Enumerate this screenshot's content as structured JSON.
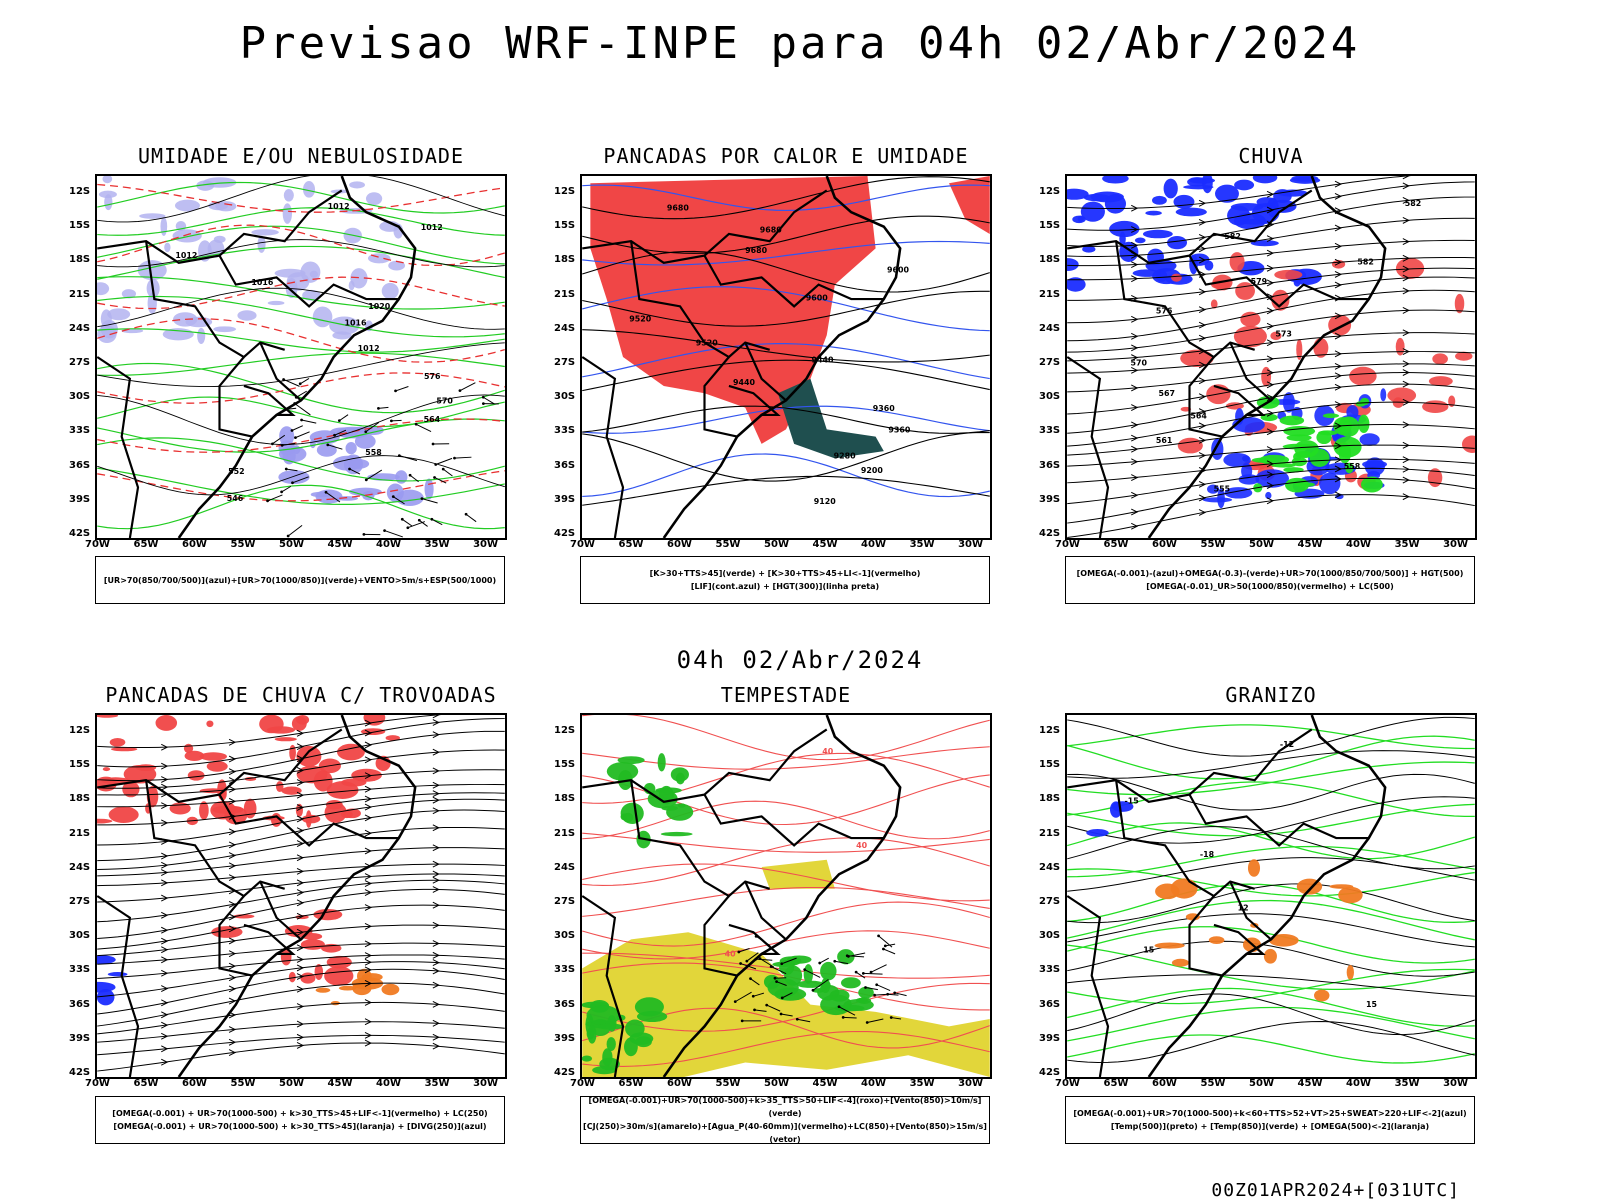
{
  "header": {
    "title": "Previsao WRF-INPE  para 04h 02/Abr/2024",
    "mid_date": "04h 02/Abr/2024",
    "footer": "00Z01APR2024+[031UTC]"
  },
  "axes": {
    "lat_labels": [
      "12S",
      "15S",
      "18S",
      "21S",
      "24S",
      "27S",
      "30S",
      "33S",
      "36S",
      "39S",
      "42S"
    ],
    "lon_labels": [
      "70W",
      "65W",
      "60W",
      "55W",
      "50W",
      "45W",
      "40W",
      "35W",
      "30W"
    ]
  },
  "panels": [
    {
      "title": "UMIDADE E/OU NEBULOSIDADE",
      "legend": [
        "[UR>70(850/700/500)](azul)+[UR>70(1000/850)](verde)+VENTO>5m/s+ESP(500/1000)"
      ],
      "contour_labels": [
        "1012",
        "1012",
        "1012",
        "1016",
        "1020",
        "1016",
        "1012",
        "576",
        "570",
        "564",
        "558",
        "552",
        "546"
      ]
    },
    {
      "title": "PANCADAS POR CALOR E UMIDADE",
      "legend": [
        "[K>30+TTS>45](verde) + [K>30+TTS>45+LI<-1](vermelho)",
        "[LIF](cont.azul) + [HGT(300)](linha preta)"
      ],
      "contour_labels": [
        "9680",
        "9680",
        "9680",
        "9600",
        "9600",
        "9520",
        "9520",
        "9440",
        "9440",
        "9360",
        "9360",
        "9280",
        "9200",
        "9120"
      ]
    },
    {
      "title": "CHUVA",
      "legend": [
        "[OMEGA(-0.001)-(azul)+OMEGA(-0.3)-(verde)+UR>70(1000/850/700/500)] + HGT(500)",
        "[OMEGA(-0.01)_UR>50(1000/850)(vermelho) + LC(500)"
      ],
      "contour_labels": [
        "582",
        "582",
        "582",
        "579",
        "576",
        "573",
        "570",
        "567",
        "564",
        "561",
        "558",
        "555"
      ]
    },
    {
      "title": "PANCADAS DE CHUVA C/ TROVOADAS",
      "legend": [
        "[OMEGA(-0.001) + UR>70(1000-500) + k>30_TTS>45+LIF<-1](vermelho) + LC(250)",
        "[OMEGA(-0.001) + UR>70(1000-500) + k>30_TTS>45](laranja) + [DIVG(250)](azul)"
      ],
      "contour_labels": []
    },
    {
      "title": "TEMPESTADE",
      "legend": [
        "[OMEGA(-0.001)+UR>70(1000-500)+k>35_TTS>50+LIF<-4](roxo)+[Vento(850)>10m/s](verde)",
        "[CJ(250)>30m/s](amarelo)+[Agua_P(40-60mm)](vermelho)+LC(850)+[Vento(850)>15m/s](vetor)"
      ],
      "contour_labels": [
        "40",
        "40",
        "40"
      ]
    },
    {
      "title": "GRANIZO",
      "legend": [
        "[OMEGA(-0.001)+UR>70(1000-500)+k<60+TTS>52+VT>25+SWEAT>220+LIF<-2](azul)",
        "[Temp(500)](preto) + [Temp(850)](verde) + [OMEGA(500)<-2](laranja)"
      ],
      "contour_labels": [
        "-12",
        "-15",
        "-18",
        "12",
        "15",
        "15"
      ]
    }
  ]
}
